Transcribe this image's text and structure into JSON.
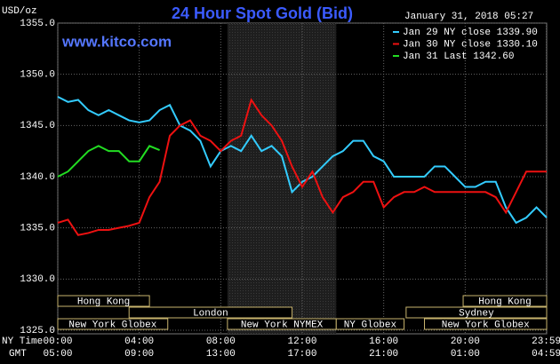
{
  "chart_data": {
    "type": "line",
    "title": "24 Hour Spot Gold (Bid)",
    "unit_label": "USD/oz",
    "timestamp": "January 31, 2018 05:27",
    "website": "www.kitco.com",
    "x_axis_label": "NY Time",
    "x2_axis_label": "GMT",
    "x": [
      0,
      0.5,
      1,
      1.5,
      2,
      2.5,
      3,
      3.5,
      4,
      4.5,
      5,
      5.5,
      6,
      6.5,
      7,
      7.5,
      8,
      8.5,
      9,
      9.5,
      10,
      10.5,
      11,
      11.5,
      12,
      12.5,
      13,
      13.5,
      14,
      14.5,
      15,
      15.5,
      16,
      16.5,
      17,
      17.5,
      18,
      18.5,
      19,
      19.5,
      20,
      20.5,
      21,
      21.5,
      22,
      22.5,
      23,
      23.5,
      24
    ],
    "xlim": [
      0,
      24
    ],
    "xticks": [
      {
        "value": 0,
        "label": "00:00"
      },
      {
        "value": 4,
        "label": "04:00"
      },
      {
        "value": 8,
        "label": "08:00"
      },
      {
        "value": 12,
        "label": "12:00"
      },
      {
        "value": 16,
        "label": "16:00"
      },
      {
        "value": 20,
        "label": "20:00"
      },
      {
        "value": 23.983,
        "label": "23:59"
      }
    ],
    "gmt_labels": [
      "05:00",
      "09:00",
      "13:00",
      "17:00",
      "21:00",
      "01:00",
      "04:59"
    ],
    "ylim": [
      1325,
      1355
    ],
    "yticks": [
      {
        "value": 1325,
        "label": "1325.0"
      },
      {
        "value": 1330,
        "label": "1330.0"
      },
      {
        "value": 1335,
        "label": "1335.0"
      },
      {
        "value": 1340,
        "label": "1340.0"
      },
      {
        "value": 1345,
        "label": "1345.0"
      },
      {
        "value": 1350,
        "label": "1350.0"
      },
      {
        "value": 1355,
        "label": "1355.0"
      }
    ],
    "grid": true,
    "shaded": [
      8.33,
      13.67
    ],
    "series": [
      {
        "name": "Jan 29 NY close 1339.90",
        "color": "#33ccff",
        "values": [
          1347.8,
          1347.3,
          1347.5,
          1346.5,
          1346,
          1346.5,
          1346,
          1345.5,
          1345.3,
          1345.5,
          1346.5,
          1347,
          1345,
          1344.5,
          1343.5,
          1341,
          1342.5,
          1343,
          1342.5,
          1344,
          1342.5,
          1343,
          1342,
          1338.5,
          1339.5,
          1340,
          1341,
          1342,
          1342.5,
          1343.5,
          1343.5,
          1342,
          1341.5,
          1340,
          1340,
          1340,
          1340,
          1341,
          1341,
          1340,
          1339,
          1339,
          1339.5,
          1339.5,
          1337,
          1335.5,
          1336,
          1337,
          1336
        ]
      },
      {
        "name": "Jan 30 NY close 1330.10",
        "color": "#ee1111",
        "values": [
          1335.5,
          1335.8,
          1334.3,
          1334.5,
          1334.8,
          1334.8,
          1335,
          1335.2,
          1335.5,
          1338,
          1339.5,
          1344,
          1345,
          1345.5,
          1344,
          1343.5,
          1342.5,
          1343.5,
          1344,
          1347.5,
          1346,
          1345,
          1343.5,
          1341,
          1339,
          1340.5,
          1338,
          1336.5,
          1338,
          1338.5,
          1339.5,
          1339.5,
          1337,
          1338,
          1338.5,
          1338.5,
          1339,
          1338.5,
          1338.5,
          1338.5,
          1338.5,
          1338.5,
          1338.5,
          1338,
          1336.5,
          1338.5,
          1340.5,
          1340.5,
          1340.5
        ]
      },
      {
        "name": "Jan 31 Last 1342.60",
        "color": "#22dd22",
        "values": [
          1340,
          1340.5,
          1341.5,
          1342.5,
          1343,
          1342.5,
          1342.5,
          1341.5,
          1341.5,
          1343,
          1342.6,
          null,
          null,
          null,
          null,
          null,
          null,
          null,
          null,
          null,
          null,
          null,
          null,
          null,
          null,
          null,
          null,
          null,
          null,
          null,
          null,
          null,
          null,
          null,
          null,
          null,
          null,
          null,
          null,
          null,
          null,
          null,
          null,
          null,
          null,
          null,
          null,
          null,
          null
        ]
      }
    ],
    "sessions": [
      {
        "label": "Hong Kong",
        "start": 0,
        "end": 4.5,
        "row": 0
      },
      {
        "label": "Hong Kong",
        "start": 19.9,
        "end": 24,
        "row": 0
      },
      {
        "label": "London",
        "start": 3.5,
        "end": 11.5,
        "row": 1
      },
      {
        "label": "Sydney",
        "start": 17.1,
        "end": 24,
        "row": 1
      },
      {
        "label": "New York Globex",
        "start": 0,
        "end": 5.4,
        "row": 2
      },
      {
        "label": "New York NYMEX",
        "start": 8.33,
        "end": 13.67,
        "row": 2
      },
      {
        "label": "NY Globex",
        "start": 13.67,
        "end": 17,
        "row": 2
      },
      {
        "label": "New York Globex",
        "start": 18,
        "end": 24,
        "row": 2
      }
    ]
  }
}
